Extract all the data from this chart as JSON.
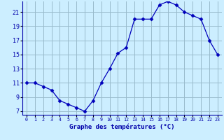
{
  "hours": [
    0,
    1,
    2,
    3,
    4,
    5,
    6,
    7,
    8,
    9,
    10,
    11,
    12,
    13,
    14,
    15,
    16,
    17,
    18,
    19,
    20,
    21,
    22,
    23
  ],
  "temperatures": [
    11,
    11,
    10.5,
    10,
    8.5,
    8,
    7.5,
    7,
    8.5,
    11,
    13,
    15.2,
    16,
    20,
    20,
    20,
    22,
    22.5,
    22,
    21,
    20.5,
    20,
    17,
    15
  ],
  "line_color": "#0000bb",
  "marker": "D",
  "marker_size": 2.5,
  "bg_color": "#cceeff",
  "grid_color": "#99bbcc",
  "axis_label_color": "#0000aa",
  "tick_color": "#0000aa",
  "xlabel": "Graphe des températures (°C)",
  "ylim": [
    6.5,
    22.5
  ],
  "yticks": [
    7,
    9,
    11,
    13,
    15,
    17,
    19,
    21
  ],
  "xlim": [
    -0.5,
    23.5
  ],
  "xticks": [
    0,
    1,
    2,
    3,
    4,
    5,
    6,
    7,
    8,
    9,
    10,
    11,
    12,
    13,
    14,
    15,
    16,
    17,
    18,
    19,
    20,
    21,
    22,
    23
  ]
}
